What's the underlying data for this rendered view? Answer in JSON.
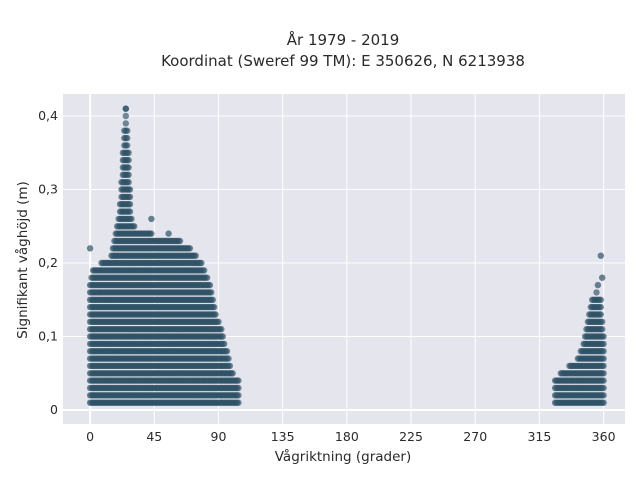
{
  "chart_data": {
    "type": "scatter",
    "title_lines": [
      "År 1979 - 2019",
      "Koordinat (Sweref 99 TM): E 350626, N 6213938"
    ],
    "xlabel": "Vågriktning (grader)",
    "ylabel": "Signifikant våghöjd (m)",
    "xlim": [
      -19,
      375
    ],
    "ylim": [
      -0.019,
      0.43
    ],
    "x_ticks": [
      0,
      45,
      90,
      135,
      180,
      225,
      270,
      315,
      360
    ],
    "x_tick_labels": [
      "0",
      "45",
      "90",
      "135",
      "180",
      "225",
      "270",
      "315",
      "360"
    ],
    "y_ticks": [
      0,
      0.1,
      0.2,
      0.3,
      0.4
    ],
    "y_tick_labels": [
      "0",
      "0,1",
      "0,2",
      "0,3",
      "0,4"
    ],
    "grid": true,
    "marker_color": "#2e5266",
    "background_color": "#e5e5ee",
    "clusters": [
      {
        "name": "",
        "envelope": [
          {
            "x": 0,
            "ymax": 0.17
          },
          {
            "x": 2,
            "ymax": 0.19
          },
          {
            "x": 8,
            "ymax": 0.2
          },
          {
            "x": 15,
            "ymax": 0.21
          },
          {
            "x": 18,
            "ymax": 0.24
          },
          {
            "x": 21,
            "ymax": 0.28
          },
          {
            "x": 23,
            "ymax": 0.35
          },
          {
            "x": 25,
            "ymax": 0.41
          },
          {
            "x": 27,
            "ymax": 0.35
          },
          {
            "x": 29,
            "ymax": 0.26
          },
          {
            "x": 33,
            "ymax": 0.24
          },
          {
            "x": 43,
            "ymax": 0.24
          },
          {
            "x": 55,
            "ymax": 0.23
          },
          {
            "x": 63,
            "ymax": 0.23
          },
          {
            "x": 70,
            "ymax": 0.22
          },
          {
            "x": 78,
            "ymax": 0.2
          },
          {
            "x": 84,
            "ymax": 0.17
          },
          {
            "x": 88,
            "ymax": 0.13
          },
          {
            "x": 92,
            "ymax": 0.11
          },
          {
            "x": 96,
            "ymax": 0.08
          },
          {
            "x": 100,
            "ymax": 0.05
          },
          {
            "x": 104,
            "ymax": 0.04
          }
        ],
        "outliers": [
          {
            "x": 0,
            "y": 0.22
          },
          {
            "x": 25,
            "y": 0.41
          },
          {
            "x": 43,
            "y": 0.26
          },
          {
            "x": 55,
            "y": 0.24
          }
        ]
      },
      {
        "name": "",
        "envelope": [
          {
            "x": 326,
            "ymax": 0.04
          },
          {
            "x": 330,
            "ymax": 0.05
          },
          {
            "x": 336,
            "ymax": 0.06
          },
          {
            "x": 342,
            "ymax": 0.07
          },
          {
            "x": 347,
            "ymax": 0.1
          },
          {
            "x": 352,
            "ymax": 0.15
          },
          {
            "x": 355,
            "ymax": 0.16
          },
          {
            "x": 358,
            "ymax": 0.15
          },
          {
            "x": 360,
            "ymax": 0.1
          }
        ],
        "outliers": [
          {
            "x": 358,
            "y": 0.21
          },
          {
            "x": 359,
            "y": 0.18
          },
          {
            "x": 356,
            "y": 0.17
          }
        ]
      }
    ]
  }
}
